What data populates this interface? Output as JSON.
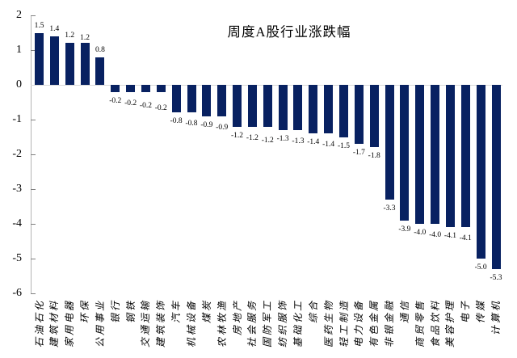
{
  "chart_data": {
    "type": "bar",
    "title": "周度A股行业涨跌幅",
    "categories": [
      "石油石化",
      "建筑材料",
      "家用电器",
      "环保",
      "公用事业",
      "银行",
      "钢铁",
      "交通运输",
      "建筑装饰",
      "汽车",
      "机械设备",
      "煤炭",
      "农林牧渔",
      "房地产",
      "社会服务",
      "国防军工",
      "纺织服饰",
      "基础化工",
      "综合",
      "医药生物",
      "轻工制造",
      "电力设备",
      "有色金属",
      "非银金融",
      "通信",
      "商贸零售",
      "食品饮料",
      "美容护理",
      "电子",
      "传媒",
      "计算机"
    ],
    "values": [
      1.5,
      1.4,
      1.2,
      1.2,
      0.8,
      -0.2,
      -0.2,
      -0.2,
      -0.2,
      -0.8,
      -0.8,
      -0.9,
      -0.9,
      -1.2,
      -1.2,
      -1.2,
      -1.3,
      -1.3,
      -1.4,
      -1.4,
      -1.5,
      -1.7,
      -1.8,
      -3.3,
      -3.9,
      -4.0,
      -4.0,
      -4.1,
      -4.1,
      -5.0,
      -5.3
    ],
    "value_labels": [
      "1.5",
      "1.4",
      "1.2",
      "1.2",
      "0.8",
      "-0.2",
      "-0.2",
      "-0.2",
      "-0.2",
      "-0.8",
      "-0.8",
      "-0.9",
      "-0.9",
      "-1.2",
      "-1.2",
      "-1.2",
      "-1.3",
      "-1.3",
      "-1.4",
      "-1.4",
      "-1.5",
      "-1.7",
      "-1.8",
      "-3.3",
      "-3.9",
      "-4.0",
      "-4.0",
      "-4.1",
      "-4.1",
      "-5.0",
      "-5.3"
    ],
    "xlabel": "",
    "ylabel": "",
    "ylim": [
      -6,
      2
    ],
    "yticks": [
      2,
      1,
      0,
      -1,
      -2,
      -3,
      -4,
      -5,
      -6
    ],
    "ytick_labels": [
      "2",
      "1",
      "0",
      "-1",
      "-2",
      "-3",
      "-4",
      "-5",
      "-6"
    ],
    "grid": "zero-line-only",
    "legend_position": "none",
    "colors": {
      "bar": "#082161",
      "axis_line": "#b3b3b3",
      "tick_mark": "#808080",
      "zero_line": "#d9d9d9",
      "text": "#000000"
    }
  }
}
